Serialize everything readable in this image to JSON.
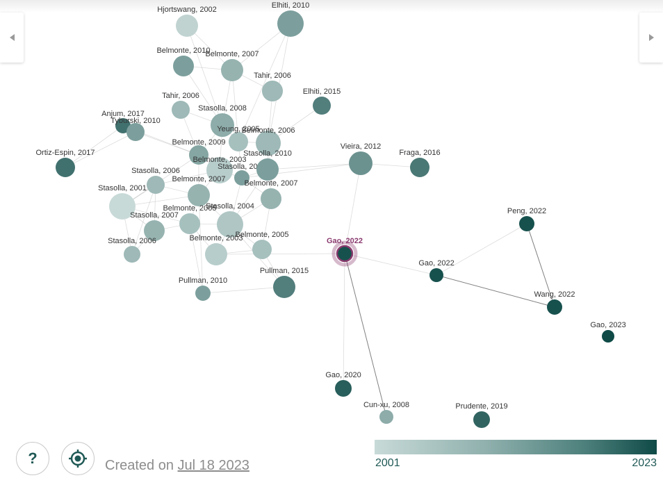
{
  "graph": {
    "nodes": [
      {
        "id": "n1",
        "label": "Hjortswang, 2002",
        "year": 2002
      },
      {
        "id": "n2",
        "label": "Elhiti, 2010",
        "year": 2010
      },
      {
        "id": "n3",
        "label": "Belmonte, 2010",
        "year": 2010
      },
      {
        "id": "n4",
        "label": "Belmonte, 2007",
        "year": 2007
      },
      {
        "id": "n5",
        "label": "Tahir, 2006",
        "year": 2006
      },
      {
        "id": "n6",
        "label": "Tahir, 2006",
        "year": 2006
      },
      {
        "id": "n7",
        "label": "Elhiti, 2015",
        "year": 2015
      },
      {
        "id": "n8",
        "label": "Stasolla, 2008",
        "year": 2008
      },
      {
        "id": "n9",
        "label": "Anjum, 2017",
        "year": 2017
      },
      {
        "id": "n10",
        "label": "Tyburski, 2010",
        "year": 2010
      },
      {
        "id": "n11",
        "label": "Yeung, 2005",
        "year": 2005
      },
      {
        "id": "n12",
        "label": "Belmonte, 2006",
        "year": 2006
      },
      {
        "id": "n13",
        "label": "Belmonte, 2009",
        "year": 2009
      },
      {
        "id": "n14",
        "label": "Ortiz-Espin, 2017",
        "year": 2017
      },
      {
        "id": "n15",
        "label": "Belmonte, 2003",
        "year": 2003
      },
      {
        "id": "n16",
        "label": "Stasolla, 2010",
        "year": 2010
      },
      {
        "id": "n17",
        "label": "Stasolla, 2010",
        "year": 2010
      },
      {
        "id": "n18",
        "label": "Vieira, 2012",
        "year": 2012
      },
      {
        "id": "n19",
        "label": "Fraga, 2016",
        "year": 2016
      },
      {
        "id": "n20",
        "label": "Stasolla, 2006",
        "year": 2006
      },
      {
        "id": "n21",
        "label": "Belmonte, 2007",
        "year": 2007
      },
      {
        "id": "n22",
        "label": "Belmonte, 2007",
        "year": 2007
      },
      {
        "id": "n23",
        "label": "Stasolla, 2001",
        "year": 2001
      },
      {
        "id": "n24",
        "label": "Belmonte, 2005",
        "year": 2005
      },
      {
        "id": "n25",
        "label": "Stasolla, 2004",
        "year": 2004
      },
      {
        "id": "n26",
        "label": "Stasolla, 2007",
        "year": 2007
      },
      {
        "id": "n27",
        "label": "Peng, 2022",
        "year": 2022
      },
      {
        "id": "n28",
        "label": "Stasolla, 2006",
        "year": 2006
      },
      {
        "id": "n29",
        "label": "Belmonte, 2003",
        "year": 2003
      },
      {
        "id": "n30",
        "label": "Belmonte, 2005",
        "year": 2005
      },
      {
        "id": "n31",
        "label": "Gao, 2022",
        "year": 2022,
        "selected": true
      },
      {
        "id": "n32",
        "label": "Gao, 2022",
        "year": 2022
      },
      {
        "id": "n33",
        "label": "Pullman, 2010",
        "year": 2010
      },
      {
        "id": "n34",
        "label": "Pullman, 2015",
        "year": 2015
      },
      {
        "id": "n35",
        "label": "Wang, 2022",
        "year": 2022
      },
      {
        "id": "n36",
        "label": "Gao, 2023",
        "year": 2023
      },
      {
        "id": "n37",
        "label": "Gao, 2020",
        "year": 2020
      },
      {
        "id": "n38",
        "label": "Cun-xu, 2008",
        "year": 2008
      },
      {
        "id": "n39",
        "label": "Prudente, 2019",
        "year": 2019
      }
    ],
    "edges": [
      [
        "n31",
        "n38"
      ],
      [
        "n31",
        "n32"
      ],
      [
        "n32",
        "n35"
      ],
      [
        "n27",
        "n35"
      ],
      [
        "n32",
        "n27"
      ],
      [
        "n31",
        "n18"
      ],
      [
        "n31",
        "n37"
      ],
      [
        "n31",
        "n29"
      ],
      [
        "n18",
        "n17"
      ],
      [
        "n18",
        "n16"
      ],
      [
        "n19",
        "n18"
      ],
      [
        "n1",
        "n4"
      ],
      [
        "n1",
        "n8"
      ],
      [
        "n2",
        "n4"
      ],
      [
        "n2",
        "n12"
      ],
      [
        "n2",
        "n11"
      ],
      [
        "n3",
        "n4"
      ],
      [
        "n3",
        "n8"
      ],
      [
        "n4",
        "n8"
      ],
      [
        "n4",
        "n5"
      ],
      [
        "n4",
        "n11"
      ],
      [
        "n5",
        "n12"
      ],
      [
        "n6",
        "n8"
      ],
      [
        "n6",
        "n13"
      ],
      [
        "n7",
        "n12"
      ],
      [
        "n8",
        "n11"
      ],
      [
        "n8",
        "n13"
      ],
      [
        "n8",
        "n15"
      ],
      [
        "n9",
        "n10"
      ],
      [
        "n9",
        "n13"
      ],
      [
        "n10",
        "n13"
      ],
      [
        "n14",
        "n10"
      ],
      [
        "n14",
        "n9"
      ],
      [
        "n11",
        "n12"
      ],
      [
        "n12",
        "n17"
      ],
      [
        "n12",
        "n21"
      ],
      [
        "n13",
        "n15"
      ],
      [
        "n13",
        "n22"
      ],
      [
        "n15",
        "n16"
      ],
      [
        "n15",
        "n22"
      ],
      [
        "n16",
        "n17"
      ],
      [
        "n16",
        "n21"
      ],
      [
        "n17",
        "n25"
      ],
      [
        "n20",
        "n22"
      ],
      [
        "n20",
        "n23"
      ],
      [
        "n20",
        "n26"
      ],
      [
        "n21",
        "n25"
      ],
      [
        "n22",
        "n23"
      ],
      [
        "n22",
        "n24"
      ],
      [
        "n22",
        "n25"
      ],
      [
        "n23",
        "n24"
      ],
      [
        "n23",
        "n26"
      ],
      [
        "n23",
        "n28"
      ],
      [
        "n24",
        "n25"
      ],
      [
        "n24",
        "n29"
      ],
      [
        "n25",
        "n29"
      ],
      [
        "n25",
        "n30"
      ],
      [
        "n26",
        "n28"
      ],
      [
        "n29",
        "n30"
      ],
      [
        "n24",
        "n33"
      ],
      [
        "n33",
        "n34"
      ],
      [
        "n34",
        "n25"
      ],
      [
        "n33",
        "n22"
      ],
      [
        "n20",
        "n28"
      ],
      [
        "n15",
        "n20"
      ],
      [
        "n13",
        "n23"
      ],
      [
        "n16",
        "n25"
      ],
      [
        "n11",
        "n16"
      ],
      [
        "n21",
        "n30"
      ],
      [
        "n26",
        "n24"
      ],
      [
        "n34",
        "n30"
      ]
    ]
  },
  "controls": {
    "help_glyph": "?",
    "prev_icon": "chevron-left-icon",
    "next_icon": "chevron-right-icon",
    "locate_icon": "crosshair-icon"
  },
  "footer": {
    "created_prefix": "Created on ",
    "created_date": "Jul 18 2023"
  },
  "legend": {
    "min_label": "2001",
    "max_label": "2023",
    "color_light": "#c8dad8",
    "color_dark": "#0f4a47"
  },
  "colors": {
    "selected_ring": "#8a3a6e"
  }
}
